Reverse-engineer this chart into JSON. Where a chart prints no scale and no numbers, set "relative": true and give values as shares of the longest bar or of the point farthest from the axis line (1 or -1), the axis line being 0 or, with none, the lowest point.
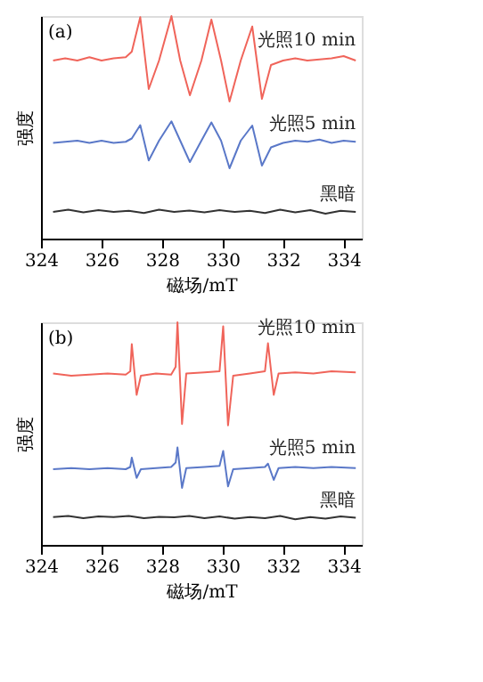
{
  "chart_data": [
    {
      "type": "line",
      "relative": true,
      "xlabel": "磁场/mT",
      "ylabel": "强度",
      "annotations": [
        "(a)"
      ],
      "xlim": [
        324,
        334.6
      ],
      "xticks": [
        324,
        326,
        328,
        330,
        332,
        334
      ],
      "tick_labels": "x",
      "grid": false,
      "series": [
        {
          "name": "光照10 min",
          "color": "#f0645a",
          "x": [
            324.4,
            324.8,
            325.2,
            325.6,
            326.0,
            326.4,
            326.8,
            327.0,
            327.28,
            327.56,
            327.9,
            328.31,
            328.6,
            328.92,
            329.3,
            329.63,
            329.95,
            330.23,
            330.6,
            330.98,
            331.3,
            331.6,
            332.0,
            332.4,
            332.8,
            333.2,
            333.6,
            334.0,
            334.4
          ],
          "values": [
            0.8,
            0.81,
            0.8,
            0.815,
            0.8,
            0.81,
            0.815,
            0.84,
            0.995,
            0.672,
            0.8,
            1.0,
            0.8,
            0.644,
            0.8,
            0.984,
            0.8,
            0.616,
            0.8,
            0.953,
            0.628,
            0.78,
            0.8,
            0.81,
            0.8,
            0.805,
            0.81,
            0.82,
            0.8
          ]
        },
        {
          "name": "光照5 min",
          "color": "#5a78c8",
          "x": [
            324.4,
            324.8,
            325.2,
            325.6,
            326.0,
            326.4,
            326.8,
            327.0,
            327.28,
            327.56,
            327.9,
            328.31,
            328.6,
            328.92,
            329.3,
            329.63,
            329.95,
            330.23,
            330.6,
            330.98,
            331.3,
            331.6,
            332.0,
            332.4,
            332.8,
            333.2,
            333.6,
            334.0,
            334.4
          ],
          "values": [
            0.43,
            0.435,
            0.44,
            0.43,
            0.44,
            0.43,
            0.435,
            0.45,
            0.51,
            0.351,
            0.44,
            0.527,
            0.44,
            0.344,
            0.44,
            0.522,
            0.44,
            0.316,
            0.44,
            0.508,
            0.328,
            0.41,
            0.43,
            0.44,
            0.435,
            0.445,
            0.43,
            0.44,
            0.435
          ]
        },
        {
          "name": "黑暗",
          "color": "#333333",
          "x": [
            324.4,
            324.9,
            325.4,
            325.9,
            326.4,
            326.9,
            327.4,
            327.9,
            328.4,
            328.9,
            329.4,
            329.9,
            330.4,
            330.9,
            331.4,
            331.9,
            332.4,
            332.9,
            333.4,
            333.9,
            334.4
          ],
          "values": [
            0.12,
            0.13,
            0.118,
            0.128,
            0.12,
            0.125,
            0.115,
            0.13,
            0.12,
            0.126,
            0.118,
            0.128,
            0.12,
            0.125,
            0.115,
            0.13,
            0.118,
            0.128,
            0.112,
            0.125,
            0.12
          ]
        }
      ]
    },
    {
      "type": "line",
      "relative": true,
      "xlabel": "磁场/mT",
      "ylabel": "强度",
      "annotations": [
        "(b)"
      ],
      "xlim": [
        324,
        334.6
      ],
      "xticks": [
        324,
        326,
        328,
        330,
        332,
        334
      ],
      "tick_labels": "x",
      "grid": false,
      "series": [
        {
          "name": "光照10 min",
          "color": "#f0645a",
          "x": [
            324.4,
            325,
            325.6,
            326.2,
            326.8,
            326.95,
            327.0,
            327.16,
            327.3,
            327.8,
            328.3,
            328.45,
            328.51,
            328.66,
            328.8,
            329.4,
            329.9,
            330.02,
            330.18,
            330.35,
            330.9,
            331.4,
            331.5,
            331.69,
            331.85,
            332.4,
            333,
            333.6,
            334.4
          ],
          "values": [
            0.77,
            0.76,
            0.765,
            0.77,
            0.765,
            0.78,
            0.902,
            0.674,
            0.76,
            0.77,
            0.765,
            0.8,
            1.0,
            0.543,
            0.77,
            0.775,
            0.78,
            0.982,
            0.537,
            0.76,
            0.77,
            0.78,
            0.906,
            0.674,
            0.77,
            0.775,
            0.77,
            0.78,
            0.775
          ]
        },
        {
          "name": "光照5 min",
          "color": "#5a78c8",
          "x": [
            324.4,
            325,
            325.6,
            326.2,
            326.8,
            326.95,
            327.0,
            327.16,
            327.3,
            327.8,
            328.3,
            328.45,
            328.51,
            328.66,
            328.8,
            329.4,
            329.9,
            330.02,
            330.18,
            330.35,
            330.9,
            331.4,
            331.5,
            331.69,
            331.85,
            332.4,
            333,
            333.6,
            334.4
          ],
          "values": [
            0.34,
            0.345,
            0.34,
            0.345,
            0.34,
            0.35,
            0.392,
            0.301,
            0.34,
            0.345,
            0.35,
            0.37,
            0.438,
            0.256,
            0.345,
            0.35,
            0.355,
            0.422,
            0.263,
            0.34,
            0.345,
            0.35,
            0.365,
            0.292,
            0.345,
            0.35,
            0.345,
            0.35,
            0.345
          ]
        },
        {
          "name": "黑暗",
          "color": "#333333",
          "x": [
            324.4,
            324.9,
            325.4,
            325.9,
            326.4,
            326.9,
            327.4,
            327.9,
            328.4,
            328.9,
            329.4,
            329.9,
            330.4,
            330.9,
            331.4,
            331.9,
            332.4,
            332.9,
            333.4,
            333.9,
            334.4
          ],
          "values": [
            0.125,
            0.13,
            0.12,
            0.128,
            0.125,
            0.13,
            0.12,
            0.126,
            0.124,
            0.13,
            0.12,
            0.128,
            0.118,
            0.125,
            0.12,
            0.13,
            0.115,
            0.125,
            0.118,
            0.128,
            0.122
          ]
        }
      ]
    }
  ]
}
